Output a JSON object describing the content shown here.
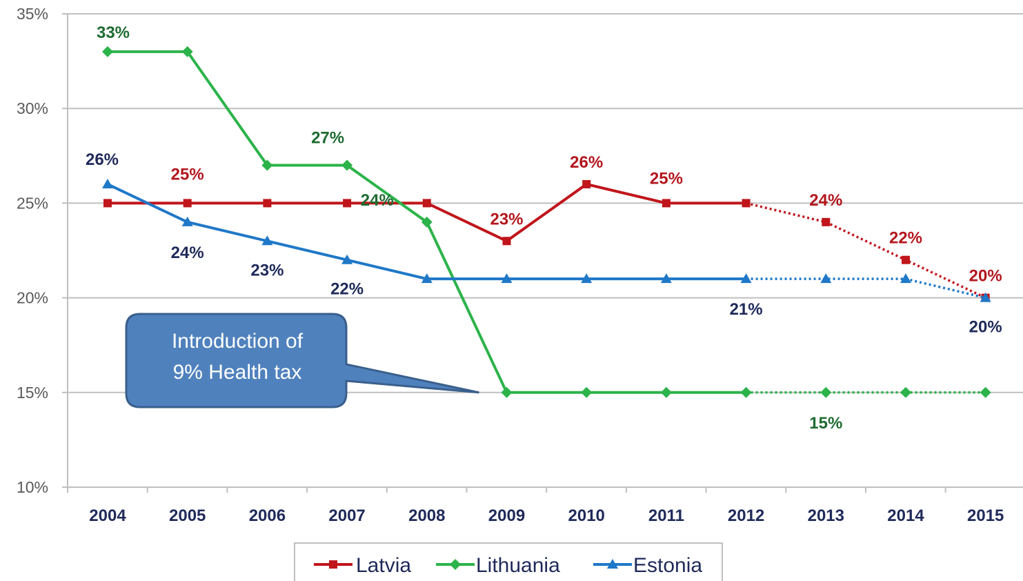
{
  "chart_data": {
    "type": "line",
    "categories": [
      "2004",
      "2005",
      "2006",
      "2007",
      "2008",
      "2009",
      "2010",
      "2011",
      "2012",
      "2013",
      "2014",
      "2015"
    ],
    "ylim": [
      10,
      35
    ],
    "y_ticks": [
      "10%",
      "15%",
      "20%",
      "25%",
      "30%",
      "35%"
    ],
    "grid": true,
    "legend_position": "bottom",
    "series": [
      {
        "name": "Latvia",
        "color": "#c0151b",
        "marker": "square",
        "values": [
          25,
          25,
          25,
          25,
          25,
          23,
          26,
          25,
          25,
          24,
          22,
          20
        ],
        "dotted_from_index": 8,
        "data_labels": [
          "",
          "25%",
          "",
          "",
          "",
          "23%",
          "26%",
          "25%",
          "",
          "24%",
          "22%",
          "20%"
        ]
      },
      {
        "name": "Lithuania",
        "color": "#2cb34a",
        "marker": "diamond",
        "values": [
          33,
          33,
          27,
          27,
          24,
          15,
          15,
          15,
          15,
          15,
          15,
          15
        ],
        "dotted_from_index": 8,
        "data_labels": [
          "33%",
          "",
          "",
          "27%",
          "24%",
          "",
          "",
          "",
          "",
          "15%",
          "",
          ""
        ]
      },
      {
        "name": "Estonia",
        "color": "#1f78c8",
        "marker": "triangle",
        "values": [
          26,
          24,
          23,
          22,
          21,
          21,
          21,
          21,
          21,
          21,
          21,
          20
        ],
        "dotted_from_index": 8,
        "data_labels": [
          "26%",
          "24%",
          "23%",
          "22%",
          "",
          "",
          "",
          "",
          "21%",
          "",
          "",
          "20%"
        ]
      }
    ],
    "annotation": {
      "lines": [
        "Introduction of",
        "9% Health tax"
      ],
      "pointer_category": "2009",
      "pointer_value": 15,
      "fill": "#4f81bd"
    }
  }
}
